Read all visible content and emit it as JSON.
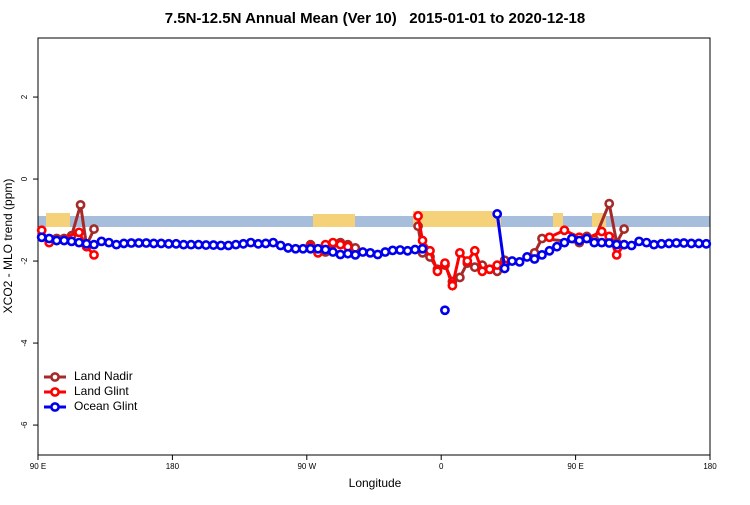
{
  "chart_data": {
    "type": "line",
    "title": "7.5N-12.5N Annual Mean (Ver 10)   2015-01-01 to 2020-12-18",
    "xlabel": "Longitude",
    "ylabel": "XCO2 - MLO trend (ppm)",
    "xlim": [
      90,
      540
    ],
    "ylim": [
      3.44,
      -6.73
    ],
    "xticks": [
      {
        "value": 90,
        "label": "90 E"
      },
      180,
      {
        "value": 270,
        "label": "90 W"
      },
      {
        "value": 360,
        "label": "0"
      },
      {
        "value": 450,
        "label": "90 E"
      },
      {
        "value": 540,
        "label": "180"
      }
    ],
    "yticks": [
      -6,
      -4,
      -2,
      0,
      2
    ],
    "legend": "bottom-left",
    "series": [
      {
        "name": "Land Nadir",
        "color": "#a52a2a",
        "x": [
          92.5,
          97.5,
          102.5,
          107.5,
          112.5,
          118.5,
          122.5,
          127.5,
          130,
          272.5,
          277.5,
          282.5,
          287.5,
          292.5,
          297.5,
          302.5,
          305,
          344.5,
          347.5,
          352.5,
          357.5,
          362.5,
          367.5,
          372.5,
          377.5,
          382.5,
          387.5,
          392.5,
          397.5,
          402.5,
          405,
          422.5,
          427.5,
          452.5,
          457.5,
          462.5,
          472.5,
          477.5,
          482.5
        ],
        "values": [
          -1.42,
          -1.5,
          -1.45,
          -1.45,
          -1.38,
          -0.63,
          -1.62,
          -1.22,
          null,
          -1.6,
          -1.75,
          -1.78,
          -1.58,
          -1.55,
          -1.6,
          -1.68,
          null,
          -1.15,
          -1.8,
          -1.9,
          -2.2,
          -2.1,
          -2.5,
          -2.4,
          -2.05,
          -2.15,
          -2.1,
          -2.2,
          -2.25,
          -1.98,
          null,
          -1.8,
          -1.45,
          -1.55,
          -1.4,
          -1.48,
          -0.6,
          -1.55,
          -1.22
        ]
      },
      {
        "name": "Land Glint",
        "color": "#ff0000",
        "x": [
          92.5,
          97.5,
          117.5,
          122.5,
          127.5,
          130,
          272.5,
          277.5,
          282.5,
          287.5,
          292.5,
          297.5,
          300,
          344.5,
          347.5,
          352.5,
          357.5,
          362.5,
          367.5,
          372.5,
          377.5,
          382.5,
          387.5,
          392.5,
          397.5,
          402.5,
          405,
          432.5,
          442.5,
          452.5,
          457.5,
          467.5,
          472.5,
          477.5,
          482.5
        ],
        "values": [
          -1.25,
          -1.55,
          -1.3,
          -1.65,
          -1.85,
          null,
          -1.65,
          -1.8,
          -1.6,
          -1.55,
          -1.6,
          -1.65,
          null,
          -0.9,
          -1.5,
          -1.75,
          -2.25,
          -2.05,
          -2.6,
          -1.8,
          -2.0,
          -1.75,
          -2.25,
          -2.2,
          -2.1,
          -2.1,
          null,
          -1.42,
          -1.25,
          -1.42,
          -1.45,
          -1.28,
          -1.4,
          -1.85,
          -1.6
        ]
      },
      {
        "name": "Ocean Glint",
        "color": "#0000ee",
        "x": [
          92.5,
          97.5,
          102.5,
          107.5,
          112.5,
          117.5,
          122.5,
          127.5,
          132.5,
          137.5,
          142.5,
          147.5,
          152.5,
          157.5,
          162.5,
          167.5,
          172.5,
          177.5,
          182.5,
          187.5,
          192.5,
          197.5,
          202.5,
          207.5,
          212.5,
          217.5,
          222.5,
          227.5,
          232.5,
          237.5,
          242.5,
          247.5,
          252.5,
          257.5,
          262.5,
          267.5,
          272.5,
          277.5,
          282.5,
          287.5,
          292.5,
          297.5,
          302.5,
          307.5,
          312.5,
          317.5,
          322.5,
          327.5,
          332.5,
          337.5,
          342.5,
          347.5,
          352.5,
          362.5,
          367.5,
          397.5,
          402.5,
          407.5,
          412.5,
          417.5,
          422.5,
          427.5,
          432.5,
          437.5,
          442.5,
          447.5,
          452.5,
          457.5,
          462.5,
          467.5,
          472.5,
          477.5,
          482.5,
          487.5,
          492.5,
          497.5,
          502.5,
          507.5,
          512.5,
          517.5,
          522.5,
          527.5,
          532.5,
          537.5
        ],
        "values": [
          -1.42,
          -1.45,
          -1.5,
          -1.5,
          -1.52,
          -1.55,
          -1.58,
          -1.6,
          -1.52,
          -1.55,
          -1.6,
          -1.57,
          -1.56,
          -1.56,
          -1.56,
          -1.57,
          -1.57,
          -1.58,
          -1.58,
          -1.6,
          -1.6,
          -1.6,
          -1.61,
          -1.61,
          -1.62,
          -1.62,
          -1.6,
          -1.58,
          -1.55,
          -1.58,
          -1.57,
          -1.55,
          -1.62,
          -1.68,
          -1.7,
          -1.7,
          -1.7,
          -1.7,
          -1.72,
          -1.78,
          -1.84,
          -1.82,
          -1.85,
          -1.78,
          -1.8,
          -1.84,
          -1.78,
          -1.74,
          -1.73,
          -1.75,
          -1.72,
          -1.7,
          null,
          -3.2,
          null,
          -0.85,
          -2.18,
          -2.0,
          -2.02,
          -1.9,
          -1.95,
          -1.85,
          -1.75,
          -1.65,
          -1.55,
          -1.45,
          -1.5,
          -1.45,
          -1.55,
          -1.55,
          -1.56,
          -1.6,
          -1.6,
          -1.62,
          -1.52,
          -1.55,
          -1.6,
          -1.58,
          -1.57,
          -1.56,
          -1.56,
          -1.57,
          -1.57,
          -1.58
        ]
      }
    ]
  }
}
